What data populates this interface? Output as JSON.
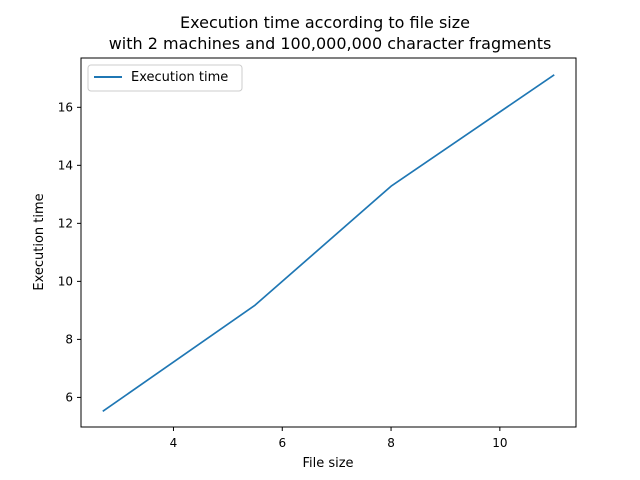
{
  "chart_data": {
    "type": "line",
    "title_line1": "Execution time according to file size",
    "title_line2": "with 2 machines and 100,000,000 character fragments",
    "xlabel": "File size",
    "ylabel": "Execution time",
    "xlim": [
      2.3,
      11.4
    ],
    "ylim": [
      4.98,
      17.7
    ],
    "xticks": [
      4,
      6,
      8,
      10
    ],
    "yticks": [
      6,
      8,
      10,
      12,
      14,
      16
    ],
    "grid": false,
    "legend_position": "top-left",
    "series": [
      {
        "name": "Execution time",
        "color": "#1f77b4",
        "x": [
          2.7,
          5.5,
          8.0,
          11.0
        ],
        "y": [
          5.52,
          9.18,
          13.28,
          17.12
        ]
      }
    ]
  }
}
